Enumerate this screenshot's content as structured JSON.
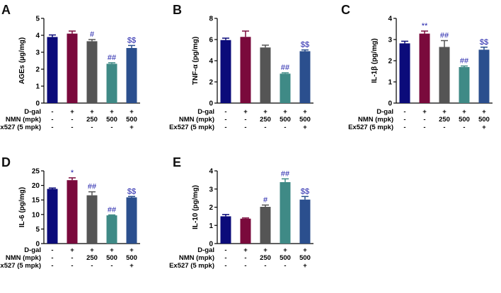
{
  "colors": [
    "#0b0b7a",
    "#7a0a3c",
    "#555555",
    "#3f8a86",
    "#2b4f8e"
  ],
  "conditions": {
    "row_labels": [
      "D-gal",
      "NMN (mpk)",
      "Ex527 (5 mpk)"
    ],
    "rows": [
      [
        "-",
        "+",
        "+",
        "+",
        "+"
      ],
      [
        "-",
        "-",
        "250",
        "500",
        "500"
      ],
      [
        "-",
        "-",
        "-",
        "-",
        "+"
      ]
    ]
  },
  "chart_data": [
    {
      "panel": "A",
      "type": "bar",
      "ylabel": "AGEs (µg/mg)",
      "ylim": [
        0,
        5
      ],
      "yticks": [
        "0",
        "1",
        "2",
        "3",
        "4",
        "5"
      ],
      "values": [
        3.9,
        4.1,
        3.65,
        2.32,
        3.25
      ],
      "errors": [
        0.12,
        0.15,
        0.1,
        0.06,
        0.15
      ],
      "annotations": [
        "",
        "",
        "#",
        "##",
        "$$"
      ]
    },
    {
      "panel": "B",
      "type": "bar",
      "ylabel": "TNF-α (pg/mg)",
      "ylim": [
        0,
        8
      ],
      "yticks": [
        "0",
        "2",
        "4",
        "6",
        "8"
      ],
      "values": [
        5.95,
        6.25,
        5.25,
        2.78,
        4.9
      ],
      "errors": [
        0.18,
        0.55,
        0.22,
        0.08,
        0.12
      ],
      "annotations": [
        "",
        "",
        "",
        "##",
        "$$"
      ]
    },
    {
      "panel": "C",
      "type": "bar",
      "ylabel": "IL-1β (pg/mg)",
      "ylim": [
        0,
        4
      ],
      "yticks": [
        "0",
        "1",
        "2",
        "3",
        "4"
      ],
      "values": [
        2.82,
        3.28,
        2.65,
        1.7,
        2.52
      ],
      "errors": [
        0.1,
        0.12,
        0.3,
        0.05,
        0.12
      ],
      "annotations": [
        "",
        "**",
        "##",
        "##",
        "$$"
      ]
    },
    {
      "panel": "D",
      "type": "bar",
      "ylabel": "IL-6 (pg/mg)",
      "ylim": [
        0,
        25
      ],
      "yticks": [
        "0",
        "5",
        "10",
        "15",
        "20",
        "25"
      ],
      "values": [
        18.8,
        21.8,
        16.6,
        9.7,
        15.9
      ],
      "errors": [
        0.3,
        0.8,
        1.2,
        0.15,
        0.3
      ],
      "annotations": [
        "",
        "*",
        "##",
        "##",
        "$$"
      ]
    },
    {
      "panel": "E",
      "type": "bar",
      "ylabel": "IL-10 (pg/mg)",
      "ylim": [
        0,
        4
      ],
      "yticks": [
        "0",
        "1",
        "2",
        "3",
        "4"
      ],
      "values": [
        1.5,
        1.37,
        2.02,
        3.38,
        2.42
      ],
      "errors": [
        0.1,
        0.04,
        0.1,
        0.18,
        0.17
      ],
      "annotations": [
        "",
        "",
        "#",
        "##",
        "$$"
      ]
    }
  ]
}
